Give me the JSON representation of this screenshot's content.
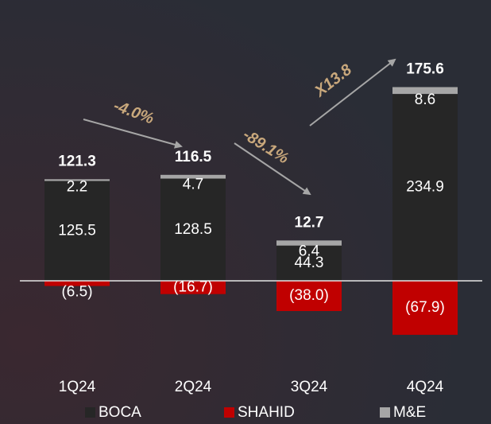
{
  "chart_data": {
    "type": "stacked_bar",
    "categories": [
      "1Q24",
      "2Q24",
      "3Q24",
      "4Q24"
    ],
    "series": [
      {
        "name": "BOCA",
        "color": "#262626",
        "values": [
          125.5,
          128.5,
          44.3,
          234.9
        ]
      },
      {
        "name": "SHAHID",
        "color": "#c00000",
        "values": [
          -6.5,
          -16.7,
          -38.0,
          -67.9
        ],
        "value_labels": [
          "(6.5)",
          "(16.7)",
          "(38.0)",
          "(67.9)"
        ]
      },
      {
        "name": "M&E",
        "color": "#a6a6a6",
        "values": [
          2.2,
          4.7,
          6.4,
          8.6
        ]
      }
    ],
    "totals": [
      121.3,
      116.5,
      12.7,
      175.6
    ],
    "annotations": [
      "-4.0%",
      "-89.1%",
      "X13.8"
    ],
    "legend": "bottom"
  }
}
